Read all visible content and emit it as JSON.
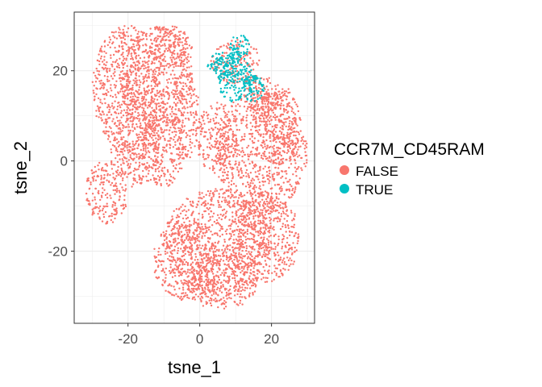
{
  "chart_data": {
    "type": "scatter",
    "title": "",
    "xlabel": "tsne_1",
    "ylabel": "tsne_2",
    "xlim": [
      -35,
      32
    ],
    "ylim": [
      -36,
      33
    ],
    "x_ticks": [
      -20,
      0,
      20
    ],
    "y_ticks": [
      -20,
      0,
      20
    ],
    "grid": true,
    "legend": {
      "title": "CCR7M_CD45RAM",
      "placement": "right",
      "entries": [
        {
          "label": "FALSE",
          "color": "#F8766D"
        },
        {
          "label": "TRUE",
          "color": "#00BFC4"
        }
      ]
    },
    "series": [
      {
        "name": "FALSE",
        "color": "#F8766D",
        "regions": [
          {
            "cx": -20,
            "cy": 16,
            "rx": 10,
            "ry": 14
          },
          {
            "cx": -12,
            "cy": 18,
            "rx": 10,
            "ry": 12
          },
          {
            "cx": -8,
            "cy": 25,
            "rx": 6,
            "ry": 5
          },
          {
            "cx": -18,
            "cy": 2,
            "rx": 7,
            "ry": 8
          },
          {
            "cx": -10,
            "cy": 3,
            "rx": 6,
            "ry": 9
          },
          {
            "cx": -4,
            "cy": 10,
            "rx": 4,
            "ry": 10
          },
          {
            "cx": -26,
            "cy": -7,
            "rx": 6,
            "ry": 7
          },
          {
            "cx": 5,
            "cy": -18,
            "rx": 15,
            "ry": 12
          },
          {
            "cx": -4,
            "cy": -22,
            "rx": 9,
            "ry": 9
          },
          {
            "cx": 18,
            "cy": -17,
            "rx": 10,
            "ry": 10
          },
          {
            "cx": 6,
            "cy": -27,
            "rx": 10,
            "ry": 6
          },
          {
            "cx": 17,
            "cy": 2,
            "rx": 13,
            "ry": 14
          },
          {
            "cx": 22,
            "cy": 8,
            "rx": 6,
            "ry": 9
          },
          {
            "cx": 5,
            "cy": 5,
            "rx": 6,
            "ry": 8
          },
          {
            "cx": 17,
            "cy": 14,
            "rx": 5,
            "ry": 5
          },
          {
            "cx": 10,
            "cy": 22,
            "rx": 7,
            "ry": 5
          }
        ]
      },
      {
        "name": "TRUE",
        "color": "#00BFC4",
        "regions": [
          {
            "cx": 10,
            "cy": 18,
            "rx": 5,
            "ry": 5
          },
          {
            "cx": 6,
            "cy": 21,
            "rx": 4,
            "ry": 3
          },
          {
            "cx": 11,
            "cy": 25,
            "rx": 3,
            "ry": 3
          },
          {
            "cx": 15,
            "cy": 16,
            "rx": 3,
            "ry": 3
          }
        ]
      }
    ]
  }
}
